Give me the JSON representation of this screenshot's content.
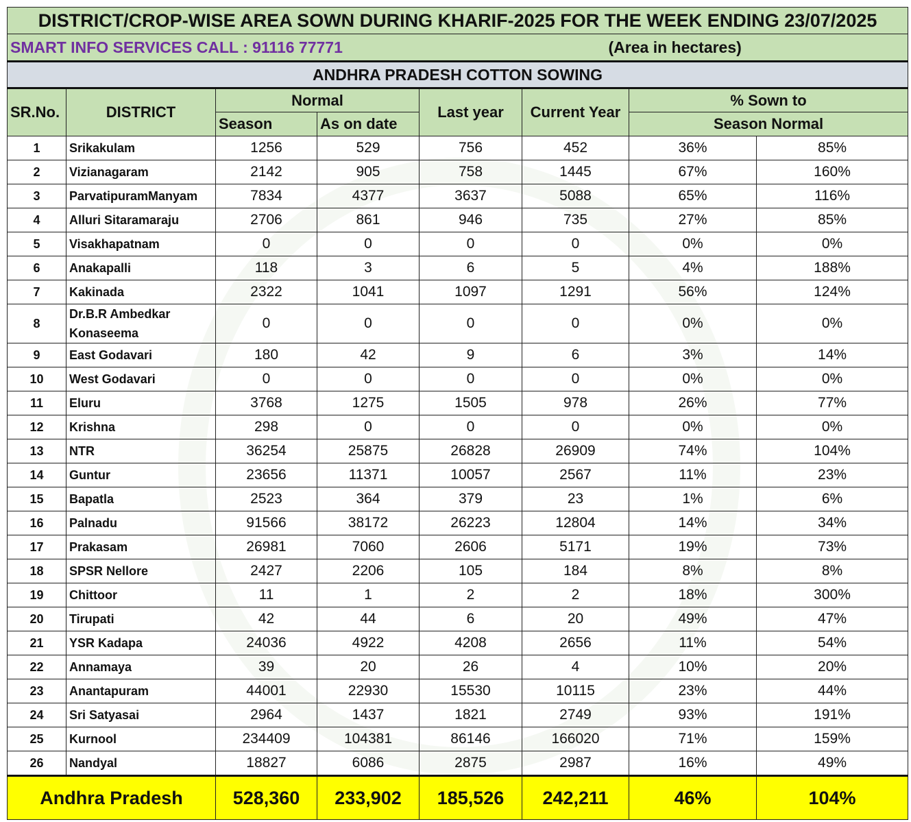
{
  "title": "DISTRICT/CROP-WISE AREA SOWN DURING KHARIF-2025 FOR THE WEEK ENDING 23/07/2025",
  "contact": "SMART INFO SERVICES CALL : 91116 77771",
  "unit": "(Area in hectares)",
  "section": "ANDHRA PRADESH COTTON SOWING",
  "headers": {
    "sr": "SR.No.",
    "district": "DISTRICT",
    "normal": "Normal",
    "season": "Season",
    "as_on_date": "As on date",
    "last_year": "Last year",
    "current_year": "Current Year",
    "pct_sown": "% Sown to",
    "season_normal": "Season Normal"
  },
  "colors": {
    "header_green": "#c6e0b4",
    "section_grey": "#d6dce4",
    "total_yellow": "#ffff00",
    "contact_purple": "#7030a0"
  },
  "rows": [
    [
      "1",
      "Srikakulam",
      "1256",
      "529",
      "756",
      "452",
      "36%",
      "85%"
    ],
    [
      "2",
      "Vizianagaram",
      "2142",
      "905",
      "758",
      "1445",
      "67%",
      "160%"
    ],
    [
      "3",
      "ParvatipuramManyam",
      "7834",
      "4377",
      "3637",
      "5088",
      "65%",
      "116%"
    ],
    [
      "4",
      "Alluri Sitaramaraju",
      "2706",
      "861",
      "946",
      "735",
      "27%",
      "85%"
    ],
    [
      "5",
      "Visakhapatnam",
      "0",
      "0",
      "0",
      "0",
      "0%",
      "0%"
    ],
    [
      "6",
      "Anakapalli",
      "118",
      "3",
      "6",
      "5",
      "4%",
      "188%"
    ],
    [
      "7",
      "Kakinada",
      "2322",
      "1041",
      "1097",
      "1291",
      "56%",
      "124%"
    ],
    [
      "8",
      "Dr.B.R Ambedkar Konaseema",
      "0",
      "0",
      "0",
      "0",
      "0%",
      "0%"
    ],
    [
      "9",
      "East Godavari",
      "180",
      "42",
      "9",
      "6",
      "3%",
      "14%"
    ],
    [
      "10",
      "West Godavari",
      "0",
      "0",
      "0",
      "0",
      "0%",
      "0%"
    ],
    [
      "11",
      "Eluru",
      "3768",
      "1275",
      "1505",
      "978",
      "26%",
      "77%"
    ],
    [
      "12",
      "Krishna",
      "298",
      "0",
      "0",
      "0",
      "0%",
      "0%"
    ],
    [
      "13",
      "NTR",
      "36254",
      "25875",
      "26828",
      "26909",
      "74%",
      "104%"
    ],
    [
      "14",
      "Guntur",
      "23656",
      "11371",
      "10057",
      "2567",
      "11%",
      "23%"
    ],
    [
      "15",
      "Bapatla",
      "2523",
      "364",
      "379",
      "23",
      "1%",
      "6%"
    ],
    [
      "16",
      "Palnadu",
      "91566",
      "38172",
      "26223",
      "12804",
      "14%",
      "34%"
    ],
    [
      "17",
      "Prakasam",
      "26981",
      "7060",
      "2606",
      "5171",
      "19%",
      "73%"
    ],
    [
      "18",
      "SPSR Nellore",
      "2427",
      "2206",
      "105",
      "184",
      "8%",
      "8%"
    ],
    [
      "19",
      "Chittoor",
      "11",
      "1",
      "2",
      "2",
      "18%",
      "300%"
    ],
    [
      "20",
      "Tirupati",
      "42",
      "44",
      "6",
      "20",
      "49%",
      "47%"
    ],
    [
      "21",
      "YSR Kadapa",
      "24036",
      "4922",
      "4208",
      "2656",
      "11%",
      "54%"
    ],
    [
      "22",
      "Annamaya",
      "39",
      "20",
      "26",
      "4",
      "10%",
      "20%"
    ],
    [
      "23",
      "Anantapuram",
      "44001",
      "22930",
      "15530",
      "10115",
      "23%",
      "44%"
    ],
    [
      "24",
      "Sri Satyasai",
      "2964",
      "1437",
      "1821",
      "2749",
      "93%",
      "191%"
    ],
    [
      "25",
      "Kurnool",
      "234409",
      "104381",
      "86146",
      "166020",
      "71%",
      "159%"
    ],
    [
      "26",
      "Nandyal",
      "18827",
      "6086",
      "2875",
      "2987",
      "16%",
      "49%"
    ]
  ],
  "total": {
    "label": "Andhra Pradesh",
    "season": "528,360",
    "as_on_date": "233,902",
    "last_year": "185,526",
    "current_year": "242,211",
    "pct_as_on_date": "46%",
    "pct_season": "104%"
  }
}
